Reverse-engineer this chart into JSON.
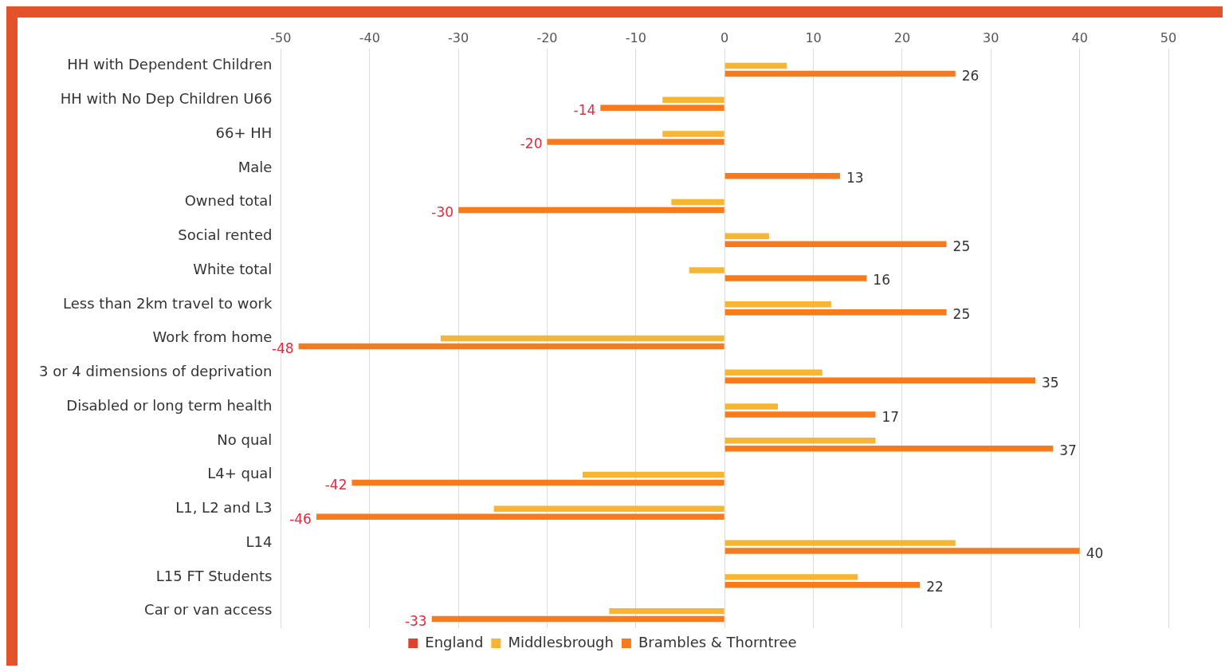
{
  "chart_data": {
    "type": "bar",
    "orientation": "horizontal",
    "categories": [
      "HH with Dependent Children",
      "HH with No Dep Children U66",
      "66+ HH",
      "Male",
      "Owned total",
      "Social rented",
      "White total",
      "Less than 2km travel to work",
      "Work from home",
      "3 or 4 dimensions of deprivation",
      "Disabled or long term health",
      "No qual",
      "L4+ qual",
      "L1, L2 and L3",
      "L14",
      "L15 FT Students",
      "Car or van access"
    ],
    "series": [
      {
        "name": "England",
        "color": "#d9442a",
        "values": [
          0,
          0,
          0,
          0,
          0,
          0,
          0,
          0,
          0,
          0,
          0,
          0,
          0,
          0,
          0,
          0,
          0
        ]
      },
      {
        "name": "Middlesbrough",
        "color": "#f7b534",
        "values": [
          7,
          -7,
          -7,
          0,
          -6,
          5,
          -4,
          12,
          -32,
          11,
          6,
          17,
          -16,
          -26,
          26,
          15,
          -13
        ]
      },
      {
        "name": "Brambles & Thorntree",
        "color": "#f77b1c",
        "values": [
          26,
          -14,
          -20,
          13,
          -30,
          25,
          16,
          25,
          -48,
          35,
          17,
          37,
          -42,
          -46,
          40,
          22,
          -33
        ],
        "value_labels": [
          "26",
          "-14",
          "-20",
          "13",
          "-30",
          "25",
          "16",
          "25",
          "-48",
          "35",
          "17",
          "37",
          "-42",
          "-46",
          "40",
          "22",
          "-33"
        ]
      }
    ],
    "xlim": [
      -50,
      50
    ],
    "xticks": [
      -50,
      -40,
      -30,
      -20,
      -10,
      0,
      10,
      20,
      30,
      40,
      50
    ],
    "grid": "x",
    "legend": "bottom"
  }
}
